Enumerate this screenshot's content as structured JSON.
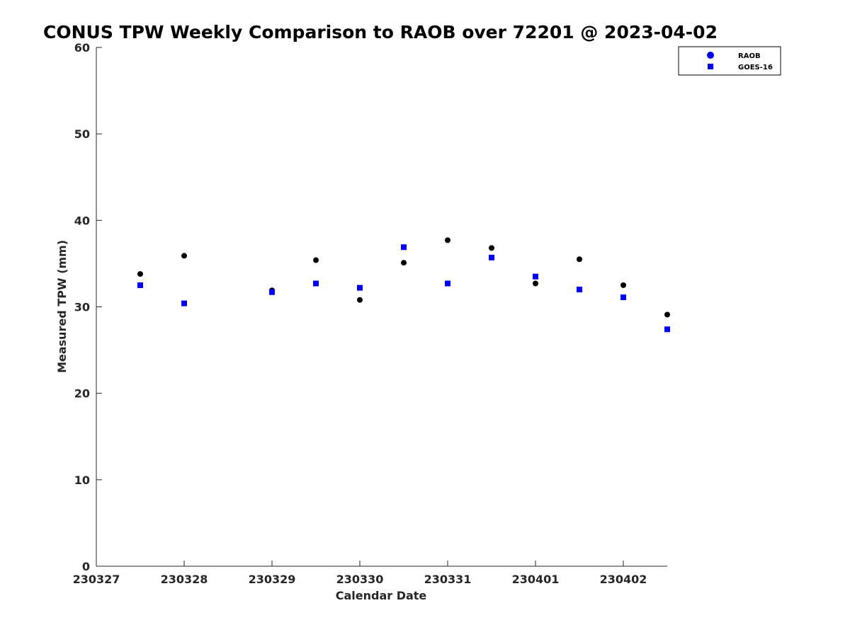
{
  "chart_data": {
    "type": "scatter",
    "title": "CONUS TPW Weekly Comparison to RAOB over 72201 @ 2023-04-02",
    "xlabel": "Calendar Date",
    "ylabel": "Measured TPW (mm)",
    "xlim": [
      0,
      6.5
    ],
    "ylim": [
      0,
      60
    ],
    "x_ticks": [
      {
        "value": 0,
        "label": "230327"
      },
      {
        "value": 1,
        "label": "230328"
      },
      {
        "value": 2,
        "label": "230329"
      },
      {
        "value": 3,
        "label": "230330"
      },
      {
        "value": 4,
        "label": "230331"
      },
      {
        "value": 5,
        "label": "230401"
      },
      {
        "value": 6,
        "label": "230402"
      }
    ],
    "y_ticks": [
      {
        "value": 0,
        "label": "0"
      },
      {
        "value": 10,
        "label": "10"
      },
      {
        "value": 20,
        "label": "20"
      },
      {
        "value": 30,
        "label": "30"
      },
      {
        "value": 40,
        "label": "40"
      },
      {
        "value": 50,
        "label": "50"
      },
      {
        "value": 60,
        "label": "60"
      }
    ],
    "grid": false,
    "legend_position": "top-right",
    "series": [
      {
        "name": "RAOB",
        "marker": "circle",
        "color": "#000000",
        "legend_color": "#0000ee",
        "points": [
          {
            "x": 0.5,
            "y": 33.8
          },
          {
            "x": 1.0,
            "y": 35.9
          },
          {
            "x": 2.0,
            "y": 31.9
          },
          {
            "x": 2.5,
            "y": 35.4
          },
          {
            "x": 3.0,
            "y": 30.8
          },
          {
            "x": 3.5,
            "y": 35.1
          },
          {
            "x": 4.0,
            "y": 37.7
          },
          {
            "x": 4.5,
            "y": 36.8
          },
          {
            "x": 5.0,
            "y": 32.7
          },
          {
            "x": 5.5,
            "y": 35.5
          },
          {
            "x": 6.0,
            "y": 32.5
          },
          {
            "x": 6.5,
            "y": 29.1
          }
        ]
      },
      {
        "name": "GOES-16",
        "marker": "square",
        "color": "#0000ee",
        "legend_color": "#0000ee",
        "points": [
          {
            "x": 0.5,
            "y": 32.5
          },
          {
            "x": 1.0,
            "y": 30.4
          },
          {
            "x": 2.0,
            "y": 31.7
          },
          {
            "x": 2.5,
            "y": 32.7
          },
          {
            "x": 3.0,
            "y": 32.2
          },
          {
            "x": 3.5,
            "y": 36.9
          },
          {
            "x": 4.0,
            "y": 32.7
          },
          {
            "x": 4.5,
            "y": 35.7
          },
          {
            "x": 5.0,
            "y": 33.5
          },
          {
            "x": 5.5,
            "y": 32.0
          },
          {
            "x": 6.0,
            "y": 31.1
          },
          {
            "x": 6.5,
            "y": 27.4
          }
        ]
      }
    ]
  }
}
